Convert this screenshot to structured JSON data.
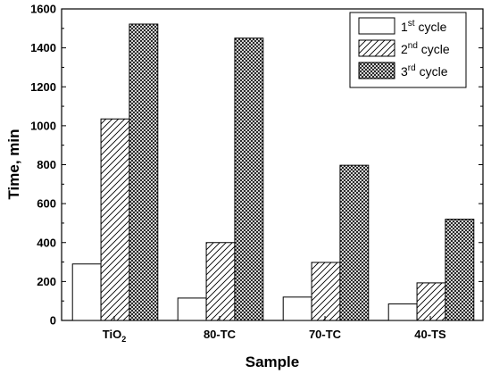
{
  "chart_data": {
    "type": "bar",
    "categories": [
      "TiO",
      "80-TC",
      "70-TC",
      "40-TS"
    ],
    "category_subscripts": [
      "2",
      "",
      "",
      ""
    ],
    "series": [
      {
        "name_main": "1",
        "name_sup": "st",
        "name_rest": " cycle",
        "pattern": "none",
        "values": [
          290,
          115,
          120,
          85
        ]
      },
      {
        "name_main": "2",
        "name_sup": "nd",
        "name_rest": " cycle",
        "pattern": "diagonal-hatch",
        "values": [
          1035,
          400,
          298,
          193
        ]
      },
      {
        "name_main": "3",
        "name_sup": "rd",
        "name_rest": " cycle",
        "pattern": "crosshatch",
        "values": [
          1522,
          1450,
          797,
          520
        ]
      }
    ],
    "xlabel": "Sample",
    "ylabel": "Time, min",
    "ylim": [
      0,
      1600
    ],
    "yticks": [
      0,
      200,
      400,
      600,
      800,
      1000,
      1200,
      1400,
      1600
    ],
    "grid": false,
    "legend_position": "top-right"
  }
}
